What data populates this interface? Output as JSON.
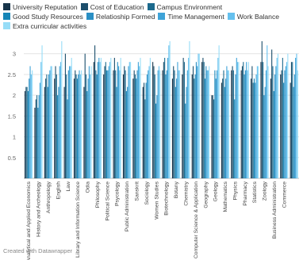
{
  "chart_data": {
    "type": "bar",
    "legend_position": "top",
    "grid": true,
    "ylim": [
      0,
      3.3
    ],
    "yticks": [
      0.5,
      1,
      1.5,
      2,
      2.5,
      3
    ],
    "categories": [
      "Analytical and Applied Economics",
      "History and Archeology",
      "Anthropology",
      "English",
      "Law",
      "Library and Information Science",
      "Odia",
      "Philosophy",
      "Political Science",
      "Psycology",
      "Public Administration",
      "Sanskrit",
      "Sociology",
      "Women Studies",
      "Biotechnology",
      "Botany",
      "Chemistry",
      "Computer Science & Application",
      "Geography",
      "Geology",
      "Mathematics",
      "Physics",
      "Pharmacy",
      "Statistics",
      "Zoology",
      "Business Administration",
      "Commerce",
      ""
    ],
    "series": [
      {
        "name": "University Reputation",
        "color": "#17344a",
        "values": [
          2.1,
          1.7,
          2.2,
          2.4,
          2.2,
          2.4,
          2.2,
          2.8,
          2.5,
          2.6,
          2.5,
          2.4,
          2.2,
          2.8,
          2.6,
          2.4,
          2.5,
          2.5,
          2.8,
          2.0,
          2.3,
          2.6,
          2.6,
          2.4,
          2.8,
          2.4,
          2.5,
          2.3
        ]
      },
      {
        "name": "Cost of Education",
        "color": "#1b4e6b",
        "values": [
          2.2,
          1.9,
          2.4,
          2.7,
          3.0,
          2.6,
          3.0,
          3.2,
          2.7,
          2.9,
          2.7,
          2.6,
          2.3,
          2.7,
          2.8,
          2.7,
          2.9,
          2.7,
          2.9,
          2.0,
          2.4,
          2.7,
          2.7,
          2.7,
          3.3,
          3.1,
          2.6,
          2.8
        ]
      },
      {
        "name": "Campus Environment",
        "color": "#1c6a8d",
        "values": [
          2.2,
          2.0,
          2.5,
          2.5,
          2.5,
          2.5,
          2.5,
          2.6,
          2.8,
          2.6,
          2.6,
          2.5,
          1.9,
          2.5,
          2.9,
          2.6,
          2.8,
          2.4,
          2.8,
          1.9,
          2.6,
          2.6,
          2.8,
          2.3,
          2.8,
          2.7,
          2.9,
          2.8
        ]
      },
      {
        "name": "Good Study Resources",
        "color": "#1685b7",
        "values": [
          2.1,
          1.7,
          2.2,
          2.0,
          1.9,
          2.4,
          2.1,
          2.5,
          2.6,
          2.2,
          2.1,
          2.4,
          2.3,
          1.8,
          2.5,
          2.2,
          1.8,
          2.5,
          2.4,
          2.6,
          2.2,
          1.9,
          2.5,
          2.4,
          2.0,
          2.1,
          2.3,
          2.2
        ]
      },
      {
        "name": "Relatioship Formed",
        "color": "#2a8fc4",
        "values": [
          2.4,
          2.0,
          2.5,
          2.2,
          2.6,
          2.5,
          2.4,
          2.8,
          2.6,
          2.8,
          2.2,
          2.6,
          2.5,
          2.0,
          2.6,
          2.4,
          2.2,
          2.8,
          2.7,
          2.4,
          2.4,
          2.5,
          2.6,
          2.3,
          2.2,
          2.5,
          2.6,
          2.5
        ]
      },
      {
        "name": "Time Management",
        "color": "#3ea3d8",
        "values": [
          2.7,
          2.3,
          2.6,
          2.7,
          2.7,
          2.6,
          2.7,
          2.9,
          2.7,
          2.7,
          2.7,
          2.8,
          2.6,
          2.6,
          2.9,
          2.8,
          2.6,
          2.7,
          2.6,
          2.6,
          2.7,
          2.9,
          2.8,
          2.5,
          2.6,
          2.7,
          2.7,
          2.9
        ]
      },
      {
        "name": "Work Balance",
        "color": "#65c0ee",
        "values": [
          2.5,
          2.8,
          2.7,
          2.8,
          2.7,
          2.5,
          2.5,
          2.8,
          2.8,
          2.6,
          2.8,
          2.7,
          2.7,
          2.7,
          3.2,
          2.6,
          2.9,
          3.0,
          2.6,
          2.9,
          2.6,
          2.8,
          2.6,
          2.7,
          3.2,
          2.9,
          2.8,
          3.0
        ]
      },
      {
        "name": "Extra curricular activities",
        "color": "#97ddf7",
        "values": [
          2.6,
          3.2,
          2.7,
          3.3,
          2.9,
          2.6,
          2.7,
          2.9,
          2.9,
          2.9,
          2.8,
          2.9,
          2.9,
          2.6,
          3.3,
          2.6,
          3.3,
          3.0,
          2.7,
          3.2,
          2.6,
          2.8,
          2.8,
          2.7,
          2.7,
          3.0,
          3.0,
          2.6
        ]
      }
    ]
  },
  "footer": {
    "credit": "Created with Datawrapper"
  }
}
